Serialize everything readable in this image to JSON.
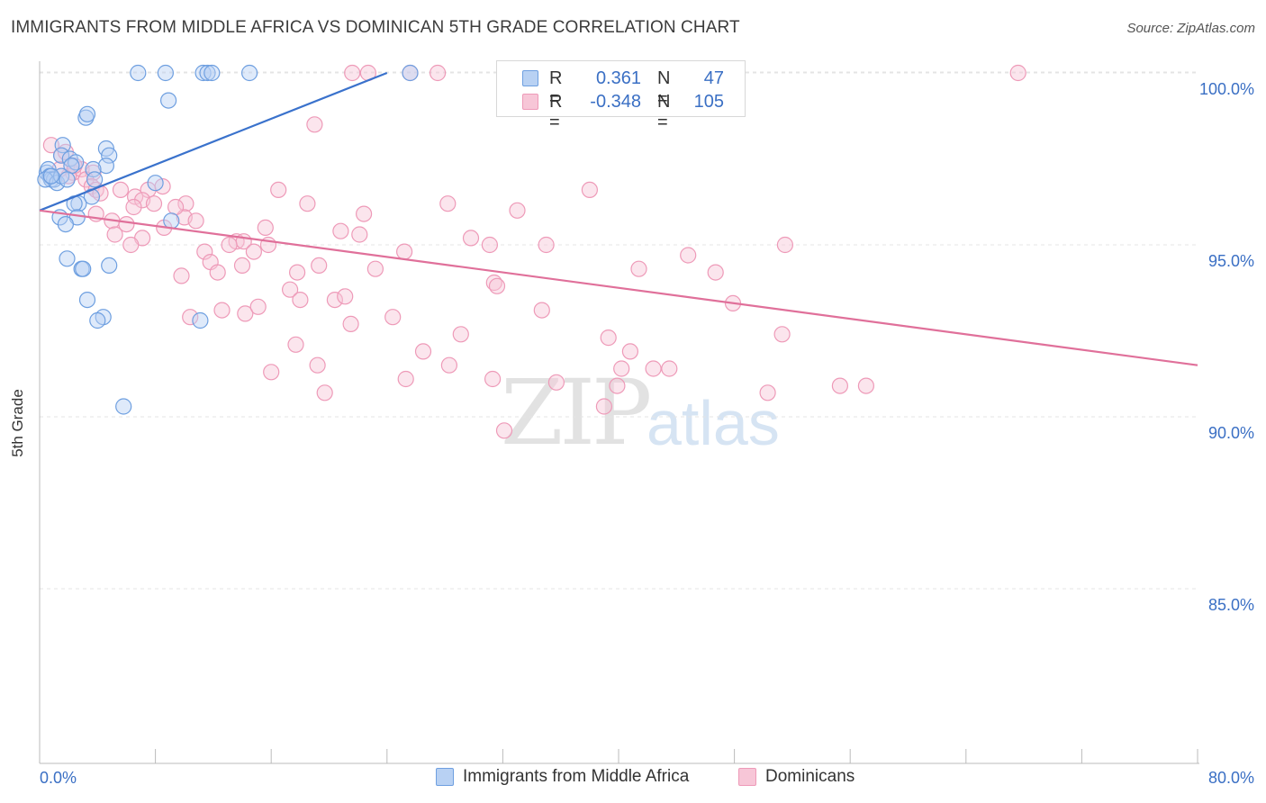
{
  "title": "IMMIGRANTS FROM MIDDLE AFRICA VS DOMINICAN 5TH GRADE CORRELATION CHART",
  "source": "Source: ZipAtlas.com",
  "watermark": {
    "zip": "ZIP",
    "atlas": "atlas"
  },
  "colors": {
    "blue": "#6e9fe0",
    "blue_fill": "#b8d1f3",
    "blue_line": "#3a72cc",
    "pink": "#ee9ab8",
    "pink_fill": "#f7c6d7",
    "pink_line": "#e0709a",
    "axis_text": "#3a6fc4",
    "grid": "#e4e4e4"
  },
  "legend": {
    "rows": [
      {
        "r_label": "R =",
        "r_value": "0.361",
        "n_label": "N =",
        "n_value": "47",
        "series": "blue"
      },
      {
        "r_label": "R =",
        "r_value": "-0.348",
        "n_label": "N =",
        "n_value": "105",
        "series": "pink"
      }
    ]
  },
  "bottom_legend": [
    {
      "label": "Immigrants from Middle Africa",
      "series": "blue"
    },
    {
      "label": "Dominicans",
      "series": "pink"
    }
  ],
  "chart_data": {
    "type": "scatter",
    "title": "IMMIGRANTS FROM MIDDLE AFRICA VS DOMINICAN 5TH GRADE CORRELATION CHART",
    "xlabel": "",
    "ylabel": "5th Grade",
    "xlim": [
      0,
      80
    ],
    "ylim": [
      80.5,
      100.7
    ],
    "x_tick_labels": [
      "0.0%",
      "80.0%"
    ],
    "y_ticks": [
      85,
      90,
      95,
      100
    ],
    "y_tick_labels": [
      "85.0%",
      "90.0%",
      "95.0%",
      "100.0%"
    ],
    "grid": "horizontal dashed",
    "legend_position": "top-center",
    "series": [
      {
        "name": "Immigrants from Middle Africa",
        "color": "blue",
        "trend": {
          "x": [
            0,
            24
          ],
          "y": [
            96.0,
            100.0
          ]
        },
        "points": [
          [
            6.8,
            100
          ],
          [
            8.7,
            100
          ],
          [
            11.3,
            100
          ],
          [
            11.6,
            100
          ],
          [
            11.9,
            100
          ],
          [
            14.5,
            100
          ],
          [
            25.6,
            100
          ],
          [
            8.9,
            99.2
          ],
          [
            3.2,
            98.7
          ],
          [
            3.3,
            98.8
          ],
          [
            1.6,
            97.9
          ],
          [
            4.6,
            97.8
          ],
          [
            4.8,
            97.6
          ],
          [
            1.5,
            97.6
          ],
          [
            2.1,
            97.5
          ],
          [
            2.5,
            97.4
          ],
          [
            2.2,
            97.3
          ],
          [
            4.6,
            97.3
          ],
          [
            3.7,
            97.2
          ],
          [
            0.5,
            97.1
          ],
          [
            0.6,
            97.2
          ],
          [
            0.7,
            97.0
          ],
          [
            0.8,
            96.9
          ],
          [
            1.0,
            96.9
          ],
          [
            0.4,
            96.9
          ],
          [
            1.2,
            96.8
          ],
          [
            1.5,
            97.0
          ],
          [
            1.9,
            96.9
          ],
          [
            8.0,
            96.8
          ],
          [
            3.6,
            96.4
          ],
          [
            3.8,
            96.9
          ],
          [
            2.7,
            96.2
          ],
          [
            2.4,
            96.2
          ],
          [
            1.4,
            95.8
          ],
          [
            2.6,
            95.8
          ],
          [
            1.8,
            95.6
          ],
          [
            9.1,
            95.7
          ],
          [
            1.9,
            94.6
          ],
          [
            2.9,
            94.3
          ],
          [
            3.0,
            94.3
          ],
          [
            4.8,
            94.4
          ],
          [
            3.3,
            93.4
          ],
          [
            4.4,
            92.9
          ],
          [
            4.0,
            92.8
          ],
          [
            11.1,
            92.8
          ],
          [
            5.8,
            90.3
          ],
          [
            0.8,
            97.0
          ]
        ]
      },
      {
        "name": "Dominicans",
        "color": "pink",
        "trend": {
          "x": [
            0,
            80
          ],
          "y": [
            96.0,
            91.5
          ]
        },
        "points": [
          [
            21.6,
            100
          ],
          [
            22.7,
            100
          ],
          [
            25.6,
            100
          ],
          [
            27.5,
            100
          ],
          [
            32.5,
            100
          ],
          [
            45.3,
            100
          ],
          [
            67.6,
            100
          ],
          [
            19.0,
            98.5
          ],
          [
            0.8,
            97.9
          ],
          [
            1.5,
            97.6
          ],
          [
            1.8,
            97.7
          ],
          [
            2.3,
            97.1
          ],
          [
            2.9,
            97.2
          ],
          [
            3.7,
            97.1
          ],
          [
            2.0,
            97.0
          ],
          [
            3.2,
            96.9
          ],
          [
            3.6,
            96.7
          ],
          [
            3.9,
            96.6
          ],
          [
            4.2,
            96.5
          ],
          [
            5.6,
            96.6
          ],
          [
            7.5,
            96.6
          ],
          [
            6.6,
            96.4
          ],
          [
            7.1,
            96.3
          ],
          [
            7.9,
            96.2
          ],
          [
            8.5,
            96.7
          ],
          [
            10.1,
            96.2
          ],
          [
            16.5,
            96.6
          ],
          [
            18.5,
            96.2
          ],
          [
            22.4,
            95.9
          ],
          [
            33.0,
            96.0
          ],
          [
            38.0,
            96.6
          ],
          [
            3.9,
            95.9
          ],
          [
            5.0,
            95.7
          ],
          [
            6.0,
            95.6
          ],
          [
            10.0,
            95.8
          ],
          [
            10.8,
            95.7
          ],
          [
            8.6,
            95.5
          ],
          [
            15.6,
            95.5
          ],
          [
            5.2,
            95.3
          ],
          [
            7.1,
            95.2
          ],
          [
            13.6,
            95.1
          ],
          [
            14.1,
            95.1
          ],
          [
            20.8,
            95.4
          ],
          [
            22.1,
            95.3
          ],
          [
            29.8,
            95.2
          ],
          [
            6.3,
            95.0
          ],
          [
            13.1,
            95.0
          ],
          [
            15.8,
            95.0
          ],
          [
            31.1,
            95.0
          ],
          [
            35.0,
            95.0
          ],
          [
            51.5,
            95.0
          ],
          [
            11.4,
            94.8
          ],
          [
            14.8,
            94.8
          ],
          [
            25.2,
            94.8
          ],
          [
            44.8,
            94.7
          ],
          [
            11.8,
            94.5
          ],
          [
            14.0,
            94.4
          ],
          [
            19.3,
            94.4
          ],
          [
            23.2,
            94.3
          ],
          [
            41.4,
            94.3
          ],
          [
            12.3,
            94.2
          ],
          [
            17.8,
            94.2
          ],
          [
            46.7,
            94.2
          ],
          [
            9.8,
            94.1
          ],
          [
            31.4,
            93.9
          ],
          [
            31.6,
            93.8
          ],
          [
            17.3,
            93.7
          ],
          [
            18.0,
            93.4
          ],
          [
            20.4,
            93.4
          ],
          [
            21.1,
            93.5
          ],
          [
            47.9,
            93.3
          ],
          [
            12.6,
            93.1
          ],
          [
            14.2,
            93.0
          ],
          [
            15.1,
            93.2
          ],
          [
            10.4,
            92.9
          ],
          [
            24.4,
            92.9
          ],
          [
            34.7,
            93.1
          ],
          [
            21.5,
            92.7
          ],
          [
            29.1,
            92.4
          ],
          [
            39.3,
            92.3
          ],
          [
            51.3,
            92.4
          ],
          [
            17.7,
            92.1
          ],
          [
            26.5,
            91.9
          ],
          [
            40.8,
            91.9
          ],
          [
            28.3,
            91.5
          ],
          [
            19.2,
            91.5
          ],
          [
            40.2,
            91.4
          ],
          [
            42.4,
            91.4
          ],
          [
            43.5,
            91.4
          ],
          [
            16.0,
            91.3
          ],
          [
            25.3,
            91.1
          ],
          [
            31.3,
            91.1
          ],
          [
            35.7,
            91.0
          ],
          [
            39.9,
            90.9
          ],
          [
            55.3,
            90.9
          ],
          [
            57.1,
            90.9
          ],
          [
            19.7,
            90.7
          ],
          [
            39.0,
            90.3
          ],
          [
            32.1,
            89.6
          ],
          [
            50.3,
            90.7
          ],
          [
            2.4,
            97.3
          ],
          [
            1.4,
            97.2
          ],
          [
            6.5,
            96.1
          ],
          [
            9.4,
            96.1
          ],
          [
            28.2,
            96.2
          ]
        ]
      }
    ]
  }
}
